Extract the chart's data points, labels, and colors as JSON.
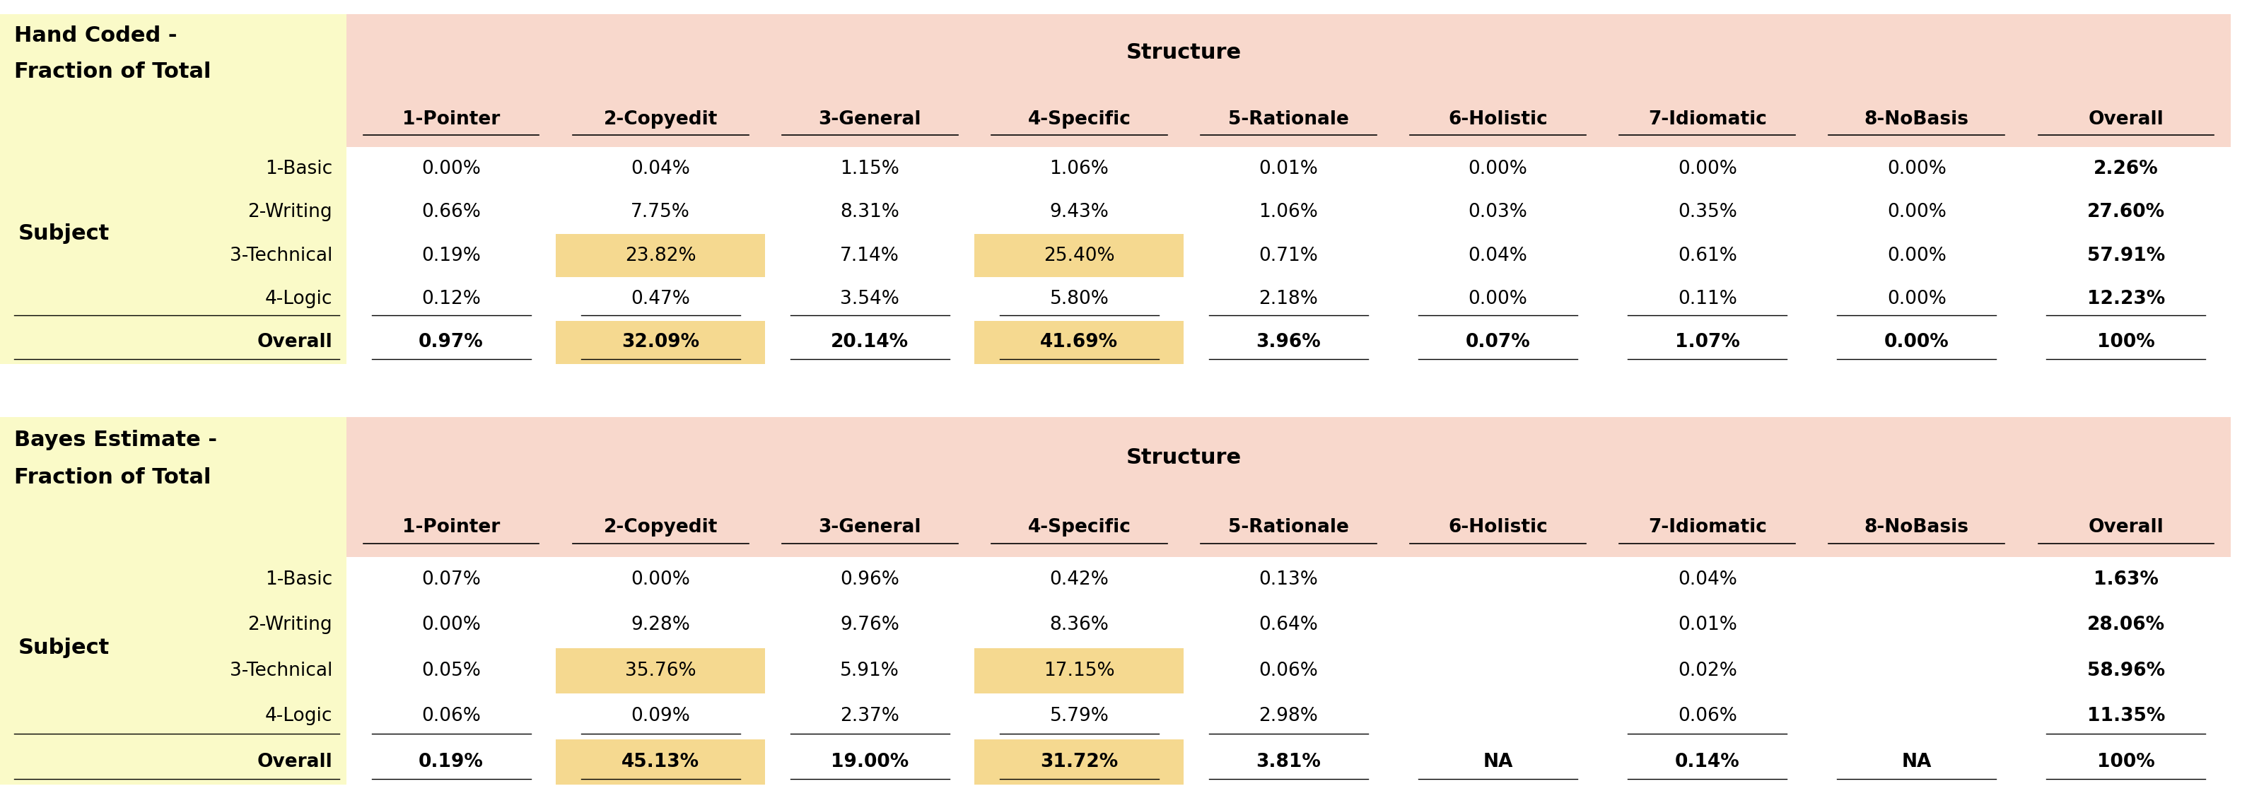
{
  "fig_width": 31.78,
  "fig_height": 11.36,
  "bg_color": "#FFFFFF",
  "left_header_bg": "#FAFAC8",
  "top_header_bg": "#F8D8CC",
  "highlight_orange": "#F5D990",
  "table1_title_line1": "Hand Coded -",
  "table1_title_line2": "Fraction of Total",
  "table2_title_line1": "Bayes Estimate -",
  "table2_title_line2": "Fraction of Total",
  "structure_label": "Structure",
  "subject_label": "Subject",
  "col_headers": [
    "1-Pointer",
    "2-Copyedit",
    "3-General",
    "4-Specific",
    "5-Rationale",
    "6-Holistic",
    "7-Idiomatic",
    "8-NoBasis",
    "Overall"
  ],
  "row_headers": [
    "1-Basic",
    "2-Writing",
    "3-Technical",
    "4-Logic",
    "Overall"
  ],
  "table1_data": [
    [
      "0.00%",
      "0.04%",
      "1.15%",
      "1.06%",
      "0.01%",
      "0.00%",
      "0.00%",
      "0.00%",
      "2.26%"
    ],
    [
      "0.66%",
      "7.75%",
      "8.31%",
      "9.43%",
      "1.06%",
      "0.03%",
      "0.35%",
      "0.00%",
      "27.60%"
    ],
    [
      "0.19%",
      "23.82%",
      "7.14%",
      "25.40%",
      "0.71%",
      "0.04%",
      "0.61%",
      "0.00%",
      "57.91%"
    ],
    [
      "0.12%",
      "0.47%",
      "3.54%",
      "5.80%",
      "2.18%",
      "0.00%",
      "0.11%",
      "0.00%",
      "12.23%"
    ],
    [
      "0.97%",
      "32.09%",
      "20.14%",
      "41.69%",
      "3.96%",
      "0.07%",
      "1.07%",
      "0.00%",
      "100%"
    ]
  ],
  "table2_data": [
    [
      "0.07%",
      "0.00%",
      "0.96%",
      "0.42%",
      "0.13%",
      "",
      "0.04%",
      "",
      "1.63%"
    ],
    [
      "0.00%",
      "9.28%",
      "9.76%",
      "8.36%",
      "0.64%",
      "",
      "0.01%",
      "",
      "28.06%"
    ],
    [
      "0.05%",
      "35.76%",
      "5.91%",
      "17.15%",
      "0.06%",
      "",
      "0.02%",
      "",
      "58.96%"
    ],
    [
      "0.06%",
      "0.09%",
      "2.37%",
      "5.79%",
      "2.98%",
      "",
      "0.06%",
      "",
      "11.35%"
    ],
    [
      "0.19%",
      "45.13%",
      "19.00%",
      "31.72%",
      "3.81%",
      "NA",
      "0.14%",
      "NA",
      "100%"
    ]
  ],
  "table1_highlight_cells": [
    [
      2,
      1
    ],
    [
      2,
      3
    ],
    [
      4,
      1
    ],
    [
      4,
      3
    ]
  ],
  "table2_highlight_cells": [
    [
      2,
      1
    ],
    [
      2,
      3
    ],
    [
      4,
      1
    ],
    [
      4,
      3
    ]
  ],
  "font_size_title": 22,
  "font_size_col_header": 19,
  "font_size_data": 19,
  "font_size_subject": 22,
  "font_size_structure": 22
}
